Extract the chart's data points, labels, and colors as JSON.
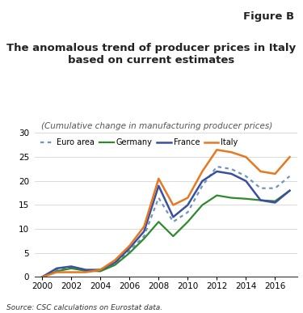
{
  "figure_label": "Figure B",
  "title": "The anomalous trend of producer prices in Italy\nbased on current estimates",
  "subtitle": "(Cumulative change in manufacturing producer prices)",
  "source": "Source: CSC calculations on Eurostat data.",
  "years": [
    2000,
    2001,
    2002,
    2003,
    2004,
    2005,
    2006,
    2007,
    2008,
    2009,
    2010,
    2011,
    2012,
    2013,
    2014,
    2015,
    2016,
    2017
  ],
  "euro_area": [
    0.0,
    1.5,
    2.0,
    1.2,
    1.3,
    2.8,
    5.5,
    8.5,
    16.5,
    11.5,
    13.5,
    19.0,
    23.0,
    22.5,
    21.0,
    18.5,
    18.5,
    21.0
  ],
  "germany": [
    0.0,
    1.2,
    1.8,
    1.3,
    1.2,
    2.5,
    5.0,
    8.0,
    11.5,
    8.5,
    11.5,
    15.0,
    17.0,
    16.5,
    16.3,
    16.0,
    15.8,
    18.0
  ],
  "france": [
    0.0,
    1.8,
    2.2,
    1.5,
    1.5,
    3.0,
    6.0,
    9.5,
    19.0,
    12.5,
    15.0,
    20.0,
    22.0,
    21.5,
    20.0,
    16.0,
    15.5,
    18.0
  ],
  "italy": [
    0.0,
    1.0,
    1.0,
    1.0,
    1.5,
    3.5,
    6.5,
    10.5,
    20.5,
    15.0,
    16.5,
    22.0,
    26.5,
    26.0,
    25.0,
    22.0,
    21.5,
    25.0
  ],
  "colors": {
    "euro_area": "#7094c0",
    "germany": "#2d8a2d",
    "france": "#3a4fa0",
    "italy": "#e87820"
  },
  "ylim": [
    0,
    30
  ],
  "yticks": [
    0,
    5,
    10,
    15,
    20,
    25,
    30
  ],
  "xticks": [
    2000,
    2002,
    2004,
    2006,
    2008,
    2010,
    2012,
    2014,
    2016
  ]
}
